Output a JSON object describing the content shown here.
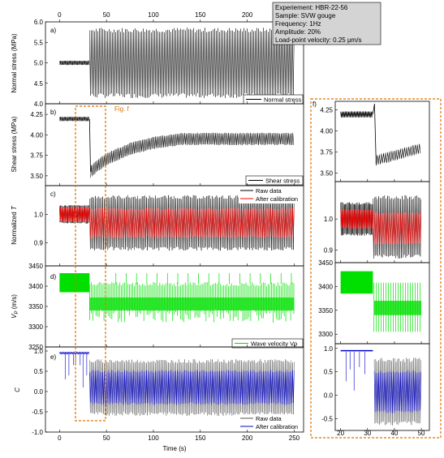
{
  "info_box": {
    "lines": [
      "Experiement: HBR-22-56",
      "Sample: SVW gouge",
      "Frequency: 1Hz",
      "Amplitude: 20%",
      "Load-point velocity: 0.25 μm/s"
    ]
  },
  "fig_annotation": "Fig. f",
  "x_label": "Time (s)",
  "colors": {
    "black": "#000000",
    "red": "#ff0000",
    "green": "#00e000",
    "blue": "#0000cc",
    "gray": "#555555",
    "orange_box": "#e07000"
  },
  "chart_data": [
    {
      "type": "line",
      "panel": "a)",
      "ylabel": "Normal stress (MPa)",
      "xlim": [
        -15,
        260
      ],
      "ylim": [
        4.0,
        6.0
      ],
      "yticks": [
        "4.0",
        "4.5",
        "5.0",
        "5.5",
        "6.0"
      ],
      "xticks": [
        "0",
        "50",
        "100",
        "150",
        "200"
      ],
      "legend": [
        "Normal stress"
      ],
      "series": [
        {
          "name": "Normal stress",
          "segments": [
            {
              "x": [
                0,
                32
              ],
              "mean": 5.0,
              "amplitude": 0.05
            },
            {
              "x": [
                32,
                250
              ],
              "mean": 5.0,
              "amplitude": 0.8
            }
          ]
        }
      ]
    },
    {
      "type": "line",
      "panel": "b)",
      "ylabel": "Shear stress (MPa)",
      "xlim": [
        -15,
        260
      ],
      "ylim": [
        3.38,
        4.38
      ],
      "yticks": [
        "3.50",
        "3.75",
        "4.00",
        "4.25"
      ],
      "legend": [
        "Shear stress"
      ],
      "series": [
        {
          "name": "Shear stress",
          "points": [
            [
              0,
              4.19
            ],
            [
              32,
              4.19
            ],
            [
              33,
              3.55
            ],
            [
              40,
              3.62
            ],
            [
              50,
              3.7
            ],
            [
              75,
              3.83
            ],
            [
              100,
              3.9
            ],
            [
              130,
              3.95
            ],
            [
              250,
              3.95
            ]
          ],
          "amplitude_after": 0.07
        }
      ]
    },
    {
      "type": "line",
      "panel": "c)",
      "ylabel": "Normalized T",
      "xlim": [
        -15,
        260
      ],
      "ylim": [
        0.82,
        1.1
      ],
      "yticks": [
        "0.9",
        "1.0"
      ],
      "legend": [
        "Raw data",
        "After calibration"
      ],
      "series": [
        {
          "name": "Raw data",
          "segments": [
            {
              "x": [
                0,
                32
              ],
              "mean": 1.0,
              "amplitude": 0.03
            },
            {
              "x": [
                32,
                250
              ],
              "mean": 0.97,
              "amplitude": 0.09
            }
          ]
        },
        {
          "name": "After calibration",
          "segments": [
            {
              "x": [
                0,
                32
              ],
              "mean": 1.0,
              "amplitude": 0.025
            },
            {
              "x": [
                32,
                250
              ],
              "mean": 0.97,
              "amplitude": 0.05
            }
          ]
        }
      ]
    },
    {
      "type": "line",
      "panel": "d)",
      "ylabel": "VP (m/s)",
      "xlim": [
        -15,
        260
      ],
      "ylim": [
        3250,
        3450
      ],
      "yticks": [
        "3250",
        "3300",
        "3350",
        "3400",
        "3450"
      ],
      "legend": [
        "Wave velocity Vp"
      ],
      "series": [
        {
          "name": "Wave velocity Vp",
          "segments": [
            {
              "x": [
                0,
                32
              ],
              "low": 3385,
              "high": 3432
            },
            {
              "x": [
                32,
                250
              ],
              "low": 3310,
              "high": 3410
            }
          ]
        }
      ]
    },
    {
      "type": "line",
      "panel": "e)",
      "ylabel": "C",
      "xlim": [
        -15,
        260
      ],
      "ylim": [
        -1.0,
        1.1
      ],
      "yticks": [
        "-1.0",
        "-0.5",
        "0.0",
        "0.5",
        "1.0"
      ],
      "xticks": [
        "0",
        "50",
        "100",
        "150",
        "200",
        "250"
      ],
      "legend": [
        "Raw data",
        "After calibration"
      ],
      "series": [
        {
          "name": "Raw data",
          "segments": [
            {
              "x": [
                0,
                32
              ],
              "mean": 0.95,
              "amplitude": 0.02
            },
            {
              "x": [
                32,
                250
              ],
              "mean": 0.1,
              "amplitude": 0.65
            }
          ]
        },
        {
          "name": "After calibration",
          "segments": [
            {
              "x": [
                0,
                32
              ],
              "mean": 0.95,
              "amplitude": 0.02
            },
            {
              "x": [
                32,
                250
              ],
              "mean": 0.1,
              "amplitude": 0.4
            }
          ]
        }
      ]
    },
    {
      "type": "line",
      "panel": "f)",
      "subplots": [
        {
          "ylim": [
            3.4,
            4.35
          ],
          "yticks": [
            "3.50",
            "3.75",
            "4.00",
            "4.25"
          ]
        },
        {
          "ylim": [
            0.86,
            1.12
          ],
          "yticks": [
            "0.9",
            "1.0"
          ]
        },
        {
          "ylim": [
            3280,
            3450
          ],
          "yticks": [
            "3300",
            "3350",
            "3400",
            "3450"
          ]
        },
        {
          "ylim": [
            -0.75,
            1.1
          ],
          "yticks": [
            "-0.5",
            "0.0",
            "0.5",
            "1.0"
          ]
        }
      ],
      "xlim": [
        18,
        53
      ],
      "xticks": [
        "20",
        "30",
        "40",
        "50"
      ]
    }
  ]
}
